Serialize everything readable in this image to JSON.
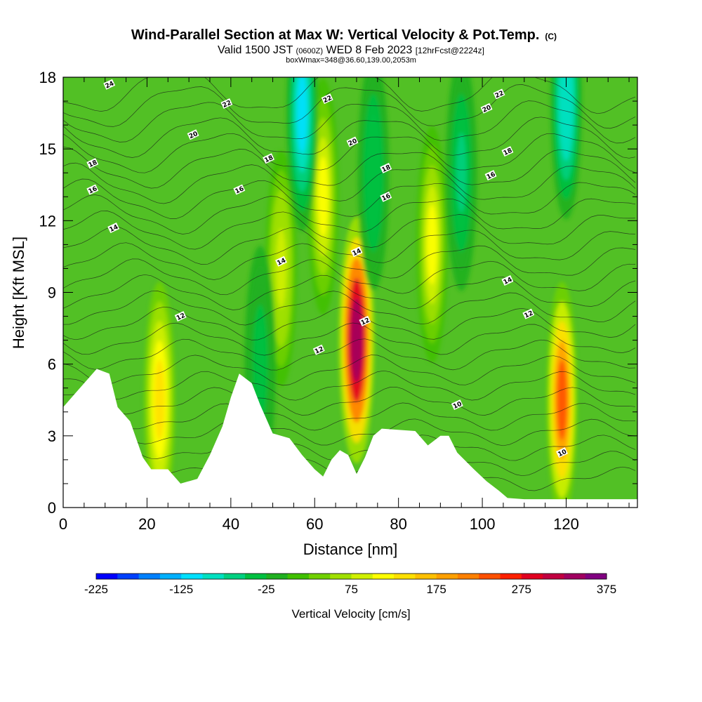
{
  "chart_data": {
    "type": "heatmap",
    "title": "Wind-Parallel Section at Max W: Vertical Velocity & Pot.Temp.",
    "title_suffix": "(C)",
    "subtitle_valid": "Valid 1500 JST",
    "subtitle_zulu": "(0600Z)",
    "subtitle_date": "WED 8 Feb 2023",
    "subtitle_fcst": "[12hrFcst@2224z]",
    "subtitle_box": "boxWmax=348@36.60,139.00,2053m",
    "xlabel": "Distance [nm]",
    "ylabel": "Height [Kft MSL]",
    "xlim": [
      0,
      137
    ],
    "ylim": [
      0,
      18
    ],
    "x_ticks": [
      0,
      20,
      40,
      60,
      80,
      100,
      120
    ],
    "y_ticks": [
      0,
      3,
      6,
      9,
      12,
      15,
      18
    ],
    "colorbar": {
      "label": "Vertical Velocity [cm/s]",
      "min": -225,
      "max": 375,
      "step": 25,
      "tick_values": [
        -225,
        -125,
        -25,
        75,
        175,
        275,
        375
      ],
      "tick_labels": [
        "-225",
        "-125",
        "-25",
        "75",
        "175",
        "275",
        "375"
      ],
      "colors": [
        "#0000ff",
        "#0040ff",
        "#0080ff",
        "#00b0ff",
        "#00e0ff",
        "#00e0c0",
        "#00d080",
        "#00c040",
        "#20b020",
        "#40c000",
        "#70d000",
        "#a0e000",
        "#d0f000",
        "#ffff00",
        "#ffe000",
        "#ffc000",
        "#ffa000",
        "#ff8000",
        "#ff5000",
        "#ff2000",
        "#e00020",
        "#c00040",
        "#a00060",
        "#800080"
      ]
    },
    "vertical_velocity_maxima": [
      {
        "distance_nm": 70,
        "height_kft": 7.0,
        "peak": 348
      },
      {
        "distance_nm": 119,
        "height_kft": 4.5,
        "peak": 230
      },
      {
        "distance_nm": 23,
        "height_kft": 4.5,
        "peak": 140
      },
      {
        "distance_nm": 88,
        "height_kft": 11,
        "peak": 120
      },
      {
        "distance_nm": 62,
        "height_kft": 13,
        "peak": 110
      },
      {
        "distance_nm": 52,
        "height_kft": 10,
        "peak": 90
      }
    ],
    "vertical_velocity_minima": [
      {
        "distance_nm": 57,
        "height_kft": 16.5,
        "peak": -120
      },
      {
        "distance_nm": 120,
        "height_kft": 17,
        "peak": -100
      },
      {
        "distance_nm": 95,
        "height_kft": 14,
        "peak": -60
      },
      {
        "distance_nm": 74,
        "height_kft": 14,
        "peak": -50
      },
      {
        "distance_nm": 47,
        "height_kft": 6,
        "peak": -40
      }
    ],
    "terrain_kft": [
      [
        0,
        4.2
      ],
      [
        3,
        4.8
      ],
      [
        8,
        5.8
      ],
      [
        11,
        5.6
      ],
      [
        13,
        4.2
      ],
      [
        16,
        3.6
      ],
      [
        19,
        2.1
      ],
      [
        21,
        1.6
      ],
      [
        25,
        1.6
      ],
      [
        28,
        1.0
      ],
      [
        32,
        1.2
      ],
      [
        35,
        2.2
      ],
      [
        38,
        3.4
      ],
      [
        40,
        4.6
      ],
      [
        42,
        5.6
      ],
      [
        45,
        5.2
      ],
      [
        47,
        4.3
      ],
      [
        50,
        3.1
      ],
      [
        54,
        2.9
      ],
      [
        57,
        2.2
      ],
      [
        60,
        1.6
      ],
      [
        62,
        1.3
      ],
      [
        64,
        2.0
      ],
      [
        66,
        2.4
      ],
      [
        68,
        2.2
      ],
      [
        70,
        1.4
      ],
      [
        72,
        2.1
      ],
      [
        74,
        3.0
      ],
      [
        76,
        3.3
      ],
      [
        84,
        3.2
      ],
      [
        87,
        2.6
      ],
      [
        90,
        3.0
      ],
      [
        92,
        3.0
      ],
      [
        94,
        2.3
      ],
      [
        98,
        1.6
      ],
      [
        101,
        1.1
      ],
      [
        104,
        0.7
      ],
      [
        106,
        0.4
      ],
      [
        110,
        0.35
      ],
      [
        137,
        0.35
      ]
    ],
    "theta_contour_labels": [
      {
        "text": "24",
        "x": 11,
        "y": 17.7
      },
      {
        "text": "22",
        "x": 39,
        "y": 16.9
      },
      {
        "text": "22",
        "x": 63,
        "y": 17.1
      },
      {
        "text": "22",
        "x": 104,
        "y": 17.3
      },
      {
        "text": "20",
        "x": 31,
        "y": 15.6
      },
      {
        "text": "20",
        "x": 69,
        "y": 15.3
      },
      {
        "text": "20",
        "x": 101,
        "y": 16.7
      },
      {
        "text": "18",
        "x": 7,
        "y": 14.4
      },
      {
        "text": "18",
        "x": 49,
        "y": 14.6
      },
      {
        "text": "18",
        "x": 77,
        "y": 14.2
      },
      {
        "text": "18",
        "x": 106,
        "y": 14.9
      },
      {
        "text": "16",
        "x": 7,
        "y": 13.3
      },
      {
        "text": "16",
        "x": 42,
        "y": 13.3
      },
      {
        "text": "16",
        "x": 77,
        "y": 13.0
      },
      {
        "text": "16",
        "x": 102,
        "y": 13.9
      },
      {
        "text": "14",
        "x": 12,
        "y": 11.7
      },
      {
        "text": "14",
        "x": 52,
        "y": 10.3
      },
      {
        "text": "14",
        "x": 70,
        "y": 10.7
      },
      {
        "text": "14",
        "x": 106,
        "y": 9.5
      },
      {
        "text": "12",
        "x": 28,
        "y": 8.0
      },
      {
        "text": "12",
        "x": 72,
        "y": 7.8
      },
      {
        "text": "12",
        "x": 61,
        "y": 6.6
      },
      {
        "text": "12",
        "x": 111,
        "y": 8.1
      },
      {
        "text": "10",
        "x": 94,
        "y": 4.3
      },
      {
        "text": "10",
        "x": 119,
        "y": 2.3
      }
    ],
    "grid": false,
    "legend": "bottom colorbar"
  }
}
